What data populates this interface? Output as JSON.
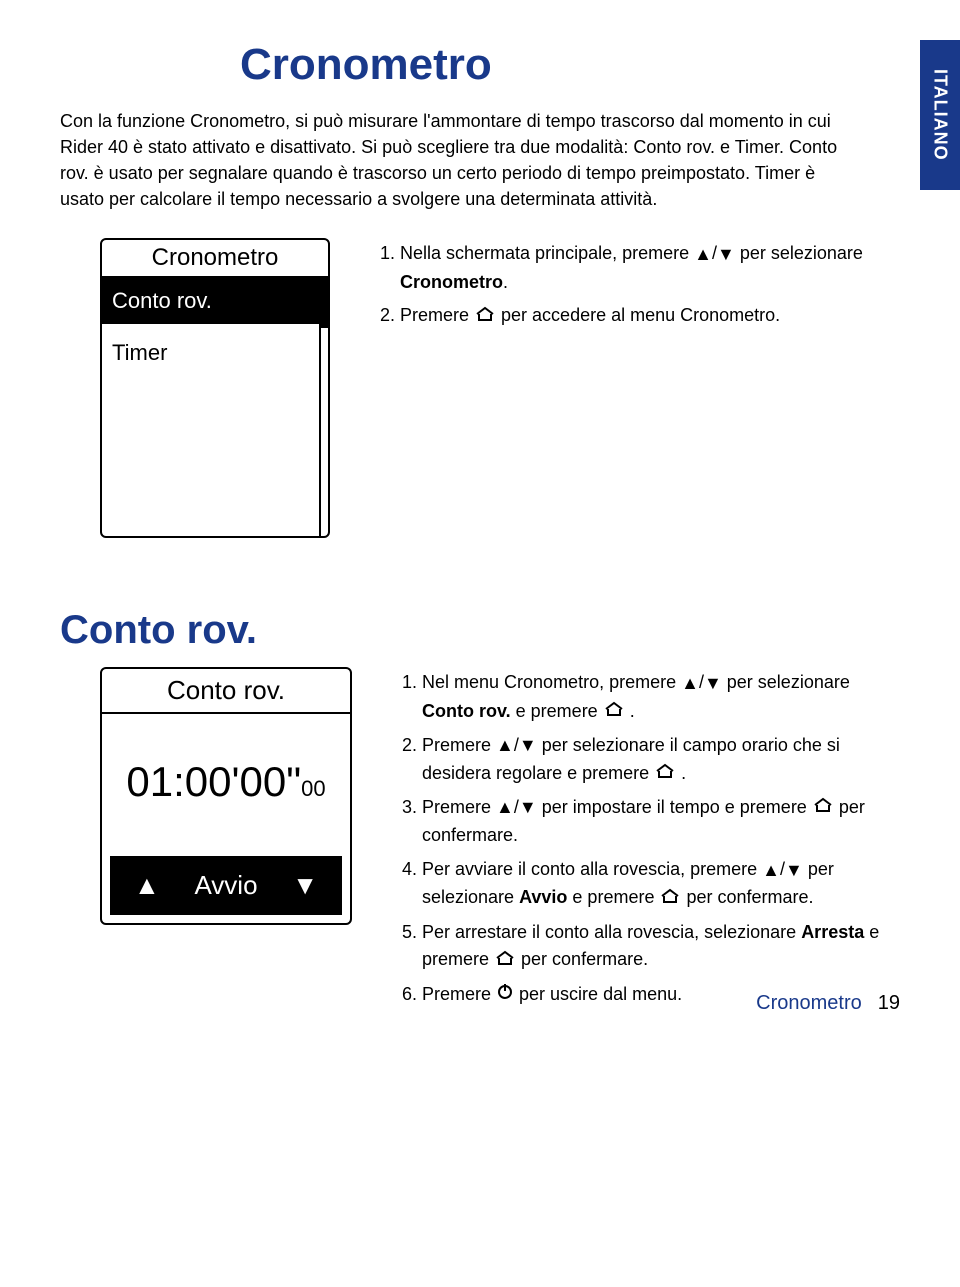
{
  "colors": {
    "brand": "#19398a",
    "text": "#000000",
    "bg": "#ffffff",
    "invert_bg": "#000000",
    "invert_text": "#ffffff"
  },
  "side_tab": "ITALIANO",
  "section1": {
    "title": "Cronometro",
    "intro_html": "Con la funzione Cronometro, si può misurare l'ammontare di tempo trascorso dal momento in cui Rider 40 è stato attivato e disattivato. Si può scegliere tra due modalità: Conto rov. e Timer. Conto rov. è usato per segnalare quando è trascorso un certo periodo di tempo preimpostato. Timer è usato per calcolare il tempo necessario a svolgere una determinata attività.",
    "device": {
      "title": "Cronometro",
      "items": [
        {
          "label": "Conto rov.",
          "selected": true
        },
        {
          "label": "Timer",
          "selected": false
        }
      ]
    },
    "steps": [
      {
        "pre": "Nella schermata principale, premere ",
        "icons": "updown",
        "mid": " per selezionare ",
        "bold": "Cronometro",
        "post": "."
      },
      {
        "pre": "Premere ",
        "icons": "home",
        "mid": " per accedere al menu Cronometro.",
        "bold": "",
        "post": ""
      }
    ]
  },
  "section2": {
    "title": "Conto rov.",
    "device": {
      "title": "Conto rov.",
      "time_main": "01:00'00\"",
      "time_sub": "00",
      "action": "Avvio"
    },
    "steps": [
      {
        "n": 1,
        "text_pre": "Nel menu Cronometro, premere ",
        "icons1": "updown",
        "text_mid": " per selezionare ",
        "bold": "Conto rov.",
        "text_mid2": " e premere ",
        "icons2": "home",
        "text_post": " ."
      },
      {
        "n": 2,
        "text_pre": "Premere ",
        "icons1": "updown",
        "text_mid": " per selezionare il campo orario che si desidera regolare e premere ",
        "bold": "",
        "text_mid2": "",
        "icons2": "home",
        "text_post": " ."
      },
      {
        "n": 3,
        "text_pre": "Premere ",
        "icons1": "updown",
        "text_mid": " per impostare il tempo e premere ",
        "bold": "",
        "text_mid2": "",
        "icons2": "home",
        "text_post": " per confermare."
      },
      {
        "n": 4,
        "text_pre": "Per avviare il conto alla rovescia, premere ",
        "icons1": "updown",
        "text_mid": " per selezionare ",
        "bold": "Avvio",
        "text_mid2": " e premere ",
        "icons2": "home",
        "text_post": " per confermare."
      },
      {
        "n": 5,
        "text_pre": "Per arrestare il conto alla rovescia, selezionare ",
        "icons1": "",
        "text_mid": "",
        "bold": "Arresta",
        "text_mid2": " e premere ",
        "icons2": "home",
        "text_post": " per confermare."
      },
      {
        "n": 6,
        "text_pre": "Premere ",
        "icons1": "power",
        "text_mid": " per uscire dal menu.",
        "bold": "",
        "text_mid2": "",
        "icons2": "",
        "text_post": ""
      }
    ]
  },
  "footer": {
    "label": "Cronometro",
    "page": "19"
  },
  "icon_glyphs": {
    "up": "▲",
    "down": "▼",
    "slash": "/"
  }
}
